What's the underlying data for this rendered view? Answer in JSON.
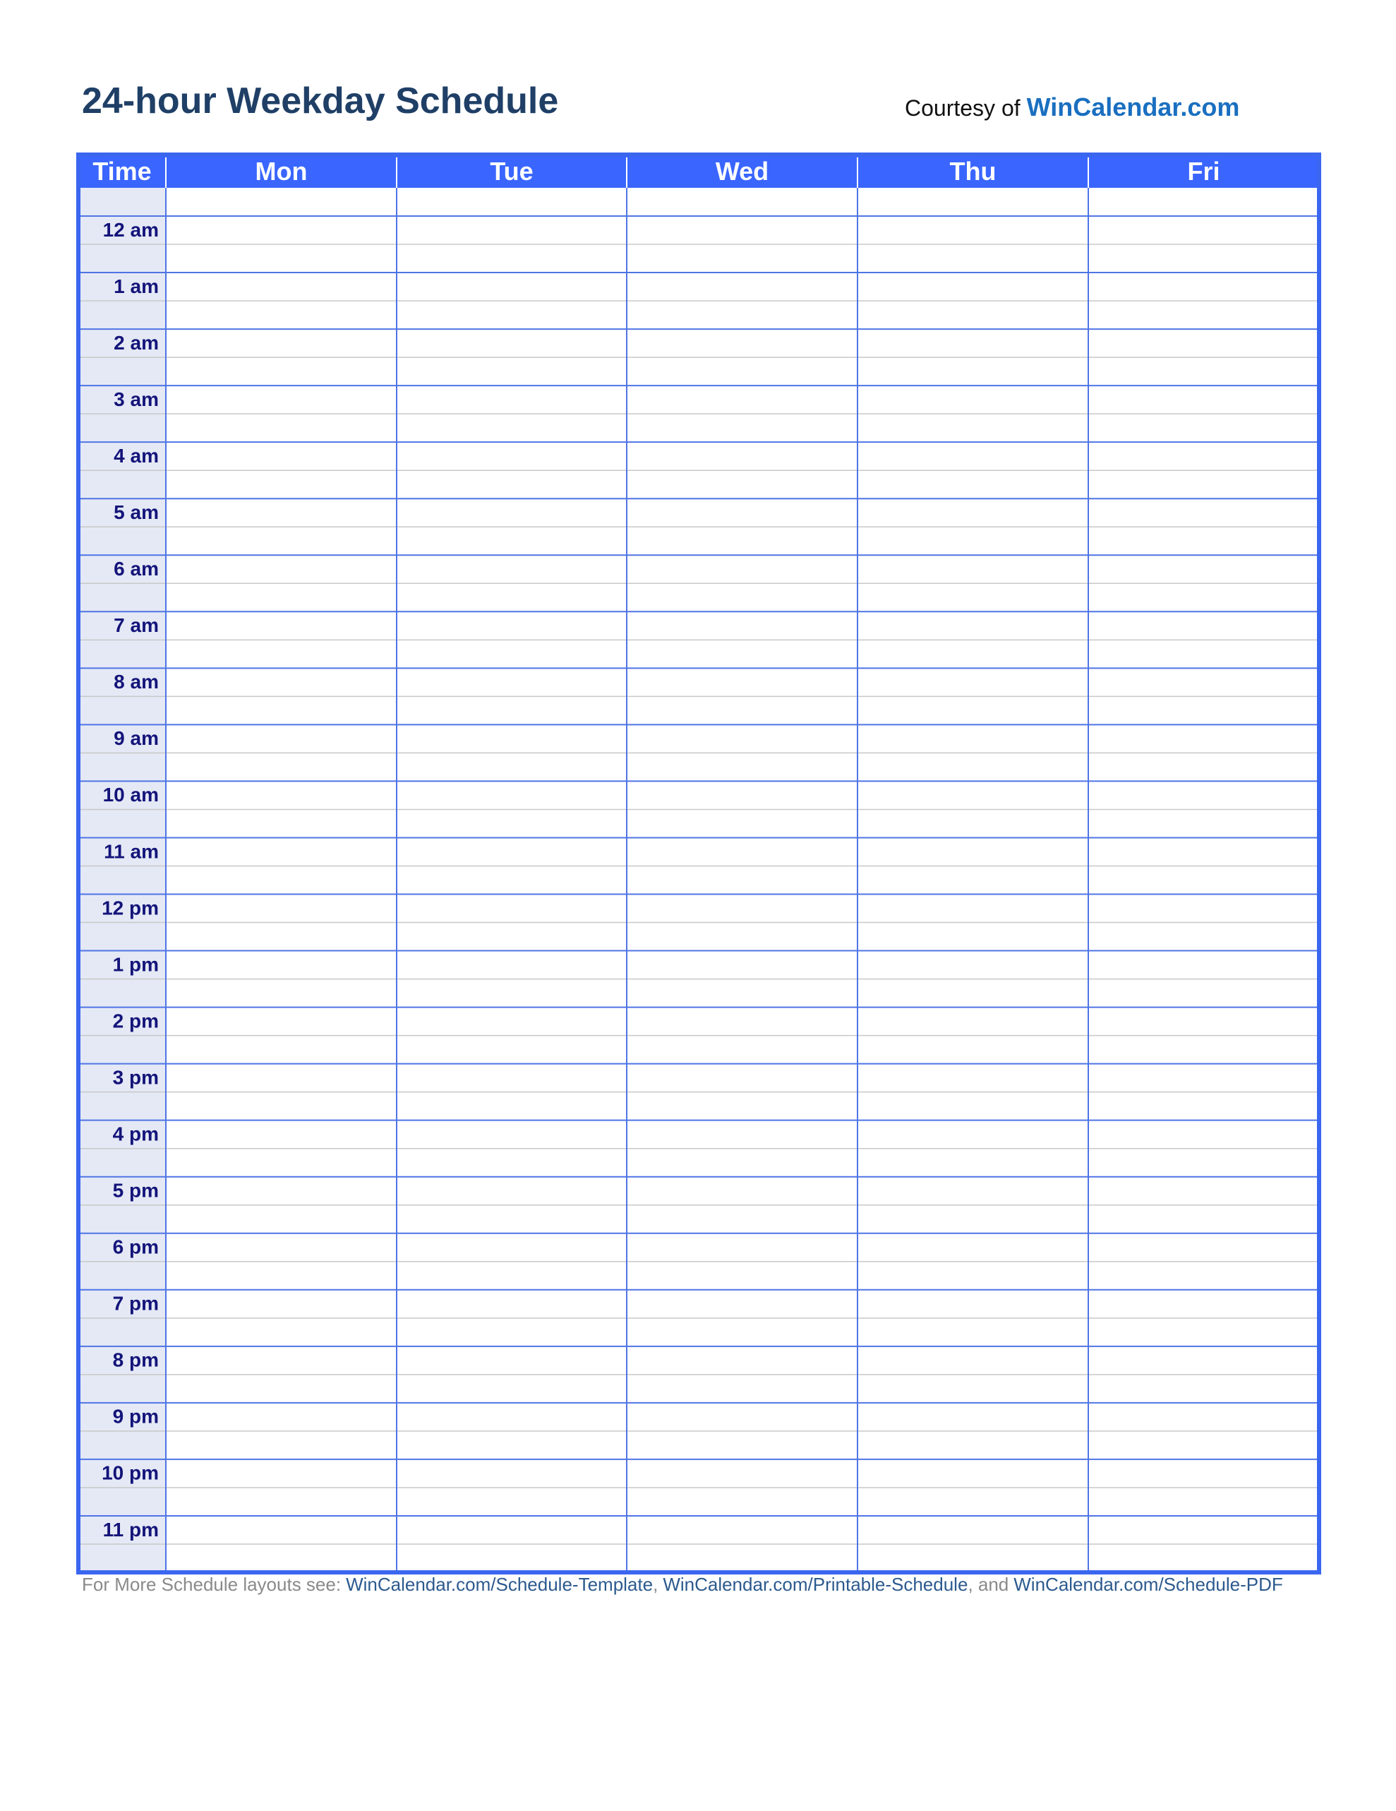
{
  "header": {
    "title": "24-hour Weekday Schedule",
    "courtesy": "Courtesy of",
    "courtesy_link": "WinCalendar.com"
  },
  "table": {
    "columns": [
      "Time",
      "Mon",
      "Tue",
      "Wed",
      "Thu",
      "Fri"
    ],
    "times": [
      "12 am",
      "1 am",
      "2 am",
      "3 am",
      "4 am",
      "5 am",
      "6 am",
      "7 am",
      "8 am",
      "9 am",
      "10 am",
      "11 am",
      "12 pm",
      "1 pm",
      "2 pm",
      "3 pm",
      "4 pm",
      "5 pm",
      "6 pm",
      "7 pm",
      "8 pm",
      "9 pm",
      "10 pm",
      "11 pm"
    ]
  },
  "footer": {
    "parts": [
      {
        "text": "For More Schedule layouts see:",
        "link": false
      },
      {
        "text": "WinCalendar.com/Schedule-Template",
        "link": true
      },
      {
        "text": ",",
        "link": false
      },
      {
        "text": "WinCalendar.com/Printable-Schedule",
        "link": true
      },
      {
        "text": ", and",
        "link": false
      },
      {
        "text": "WinCalendar.com/Schedule-PDF",
        "link": true
      }
    ]
  }
}
